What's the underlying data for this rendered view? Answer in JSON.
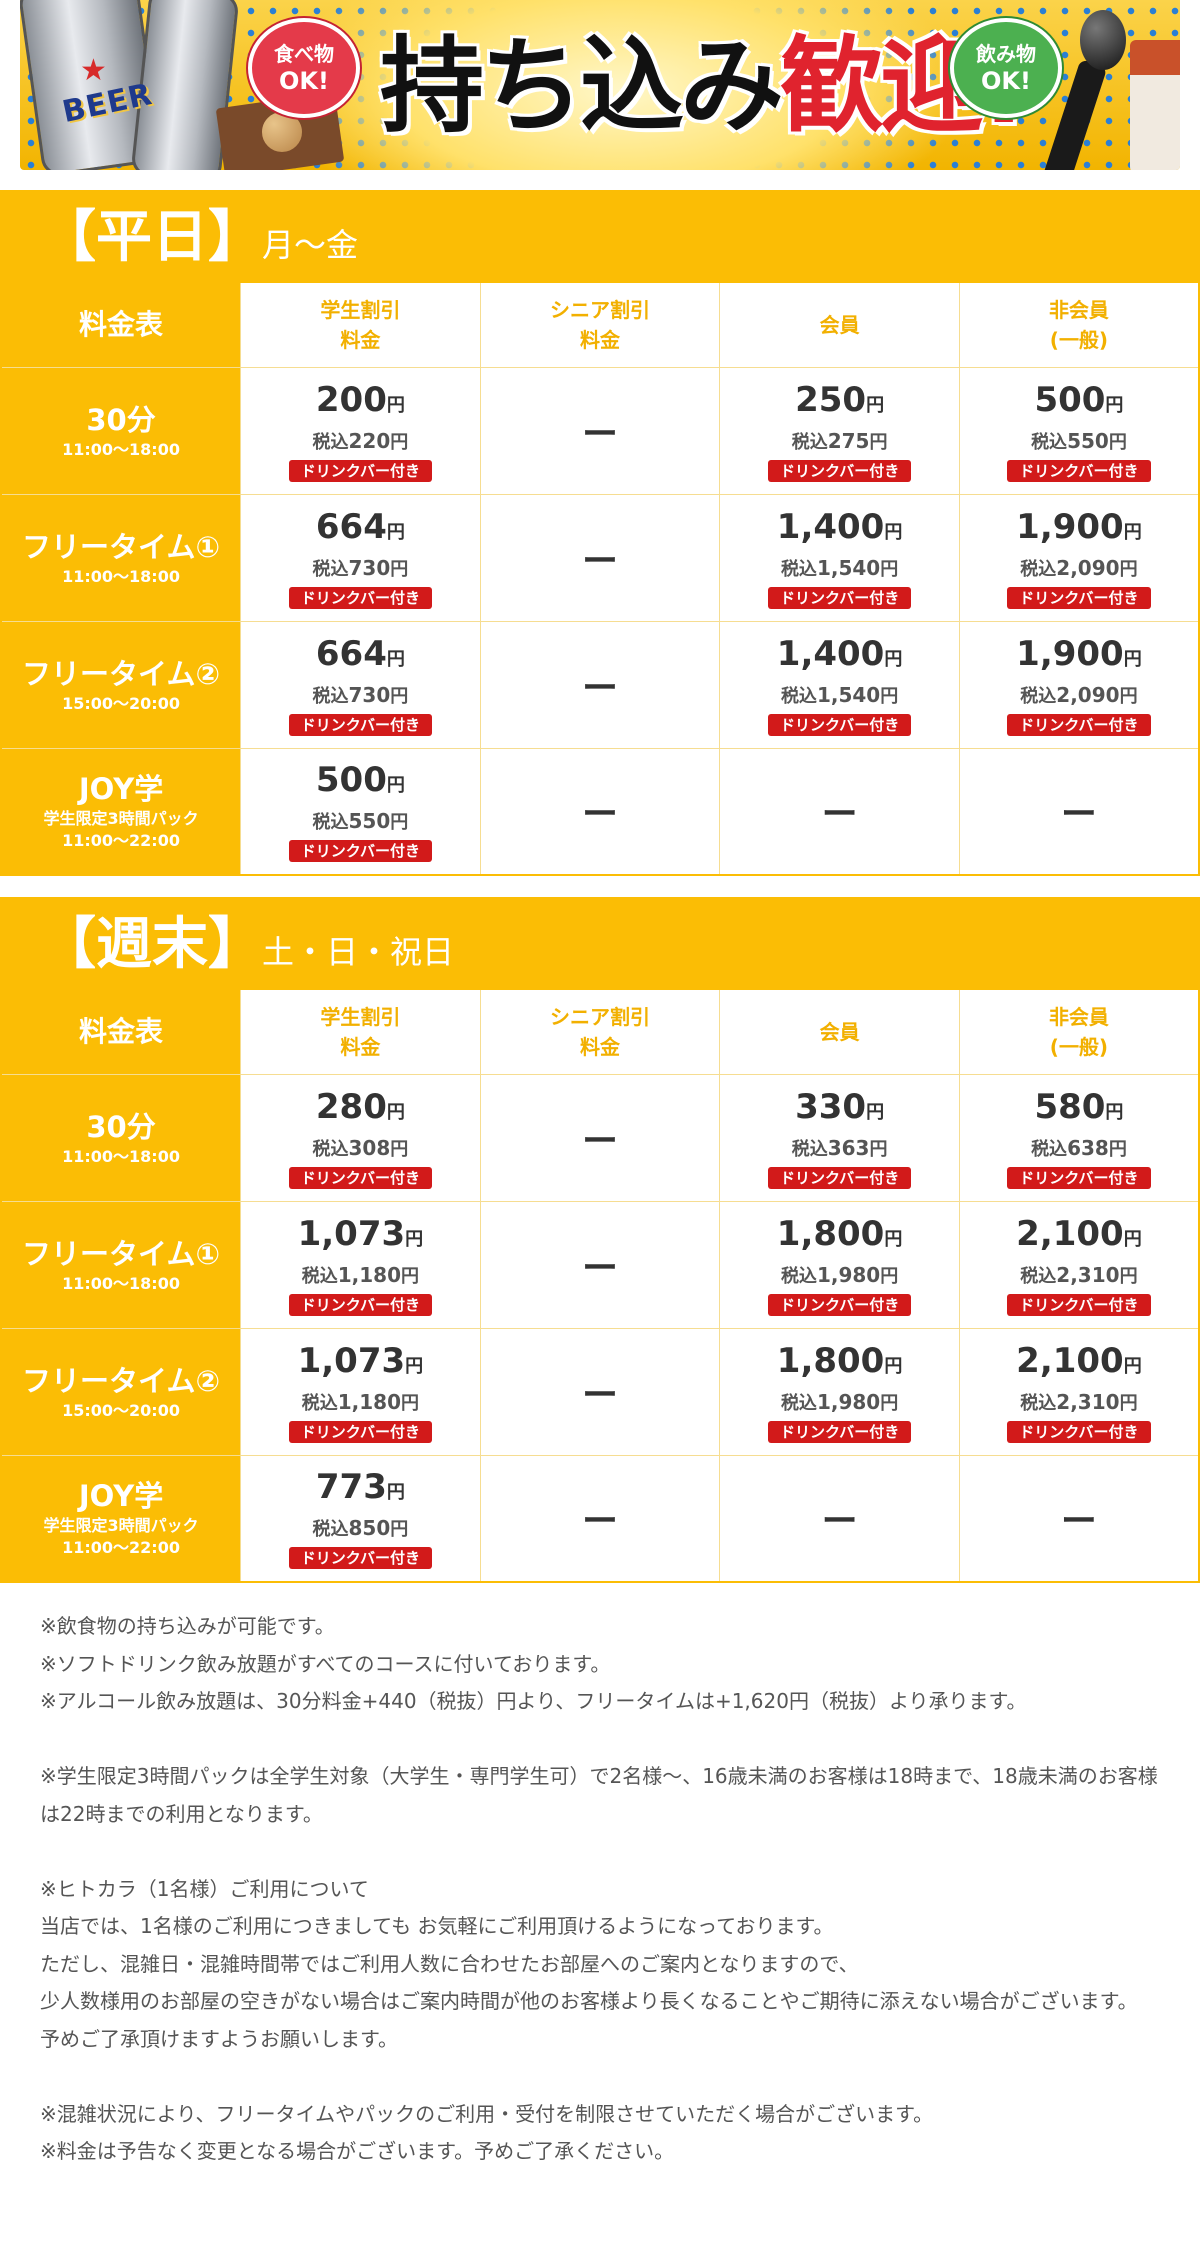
{
  "banner": {
    "bubble_food": [
      "食べ物",
      "OK!"
    ],
    "bubble_drink": [
      "飲み物",
      "OK!"
    ],
    "title_main": "持ち込み",
    "title_accent": "歓迎!",
    "can_label": "BEER",
    "icons": [
      "beer-can-icon",
      "microphone-icon",
      "coffee-cup-icon",
      "cookie-icon"
    ]
  },
  "colors": {
    "accent": "#fbbd05",
    "badge": "#d21a1a",
    "header_text": "#f2b000"
  },
  "columns": [
    "料金表",
    "学生割引\n料金",
    "シニア割引\n料金",
    "会員",
    "非会員\n(一般)"
  ],
  "drink_badge": "ドリンクバー付き",
  "yen": "円",
  "tax_prefix": "税込",
  "dash": "ー",
  "weekday": {
    "title": "【平日】",
    "subtitle": "月～金",
    "rows": [
      {
        "name": "30分",
        "note": "",
        "hours": "11:00～18:00",
        "cells": [
          {
            "price": "200",
            "tax": "220"
          },
          null,
          {
            "price": "250",
            "tax": "275"
          },
          {
            "price": "500",
            "tax": "550"
          }
        ]
      },
      {
        "name": "フリータイム①",
        "note": "",
        "hours": "11:00～18:00",
        "cells": [
          {
            "price": "664",
            "tax": "730"
          },
          null,
          {
            "price": "1,400",
            "tax": "1,540"
          },
          {
            "price": "1,900",
            "tax": "2,090"
          }
        ]
      },
      {
        "name": "フリータイム②",
        "note": "",
        "hours": "15:00～20:00",
        "cells": [
          {
            "price": "664",
            "tax": "730"
          },
          null,
          {
            "price": "1,400",
            "tax": "1,540"
          },
          {
            "price": "1,900",
            "tax": "2,090"
          }
        ]
      },
      {
        "name": "JOY学",
        "note": "学生限定3時間パック",
        "hours": "11:00～22:00",
        "cells": [
          {
            "price": "500",
            "tax": "550"
          },
          null,
          null,
          null
        ]
      }
    ]
  },
  "weekend": {
    "title": "【週末】",
    "subtitle": "土・日・祝日",
    "rows": [
      {
        "name": "30分",
        "note": "",
        "hours": "11:00～18:00",
        "cells": [
          {
            "price": "280",
            "tax": "308"
          },
          null,
          {
            "price": "330",
            "tax": "363"
          },
          {
            "price": "580",
            "tax": "638"
          }
        ]
      },
      {
        "name": "フリータイム①",
        "note": "",
        "hours": "11:00～18:00",
        "cells": [
          {
            "price": "1,073",
            "tax": "1,180"
          },
          null,
          {
            "price": "1,800",
            "tax": "1,980"
          },
          {
            "price": "2,100",
            "tax": "2,310"
          }
        ]
      },
      {
        "name": "フリータイム②",
        "note": "",
        "hours": "15:00～20:00",
        "cells": [
          {
            "price": "1,073",
            "tax": "1,180"
          },
          null,
          {
            "price": "1,800",
            "tax": "1,980"
          },
          {
            "price": "2,100",
            "tax": "2,310"
          }
        ]
      },
      {
        "name": "JOY学",
        "note": "学生限定3時間パック",
        "hours": "11:00～22:00",
        "cells": [
          {
            "price": "773",
            "tax": "850"
          },
          null,
          null,
          null
        ]
      }
    ]
  },
  "notes": [
    "※飲食物の持ち込みが可能です。",
    "※ソフトドリンク飲み放題がすべてのコースに付いております。",
    "※アルコール飲み放題は、30分料金+440（税抜）円より、フリータイムは+1,620円（税抜）より承ります。",
    "",
    "※学生限定3時間パックは全学生対象（大学生・専門学生可）で2名様～、16歳未満のお客様は18時まで、18歳未満のお客様は22時までの利用となります。",
    "",
    "※ヒトカラ（1名様）ご利用について",
    "当店では、1名様のご利用につきましても お気軽にご利用頂けるようになっております。",
    "ただし、混雑日・混雑時間帯ではご利用人数に合わせたお部屋へのご案内となりますので、",
    "少人数様用のお部屋の空きがない場合はご案内時間が他のお客様より長くなることやご期待に添えない場合がございます。",
    "予めご了承頂けますようお願いします。",
    "",
    "※混雑状況により、フリータイムやパックのご利用・受付を制限させていただく場合がございます。",
    "※料金は予告なく変更となる場合がございます。予めご了承ください。"
  ]
}
